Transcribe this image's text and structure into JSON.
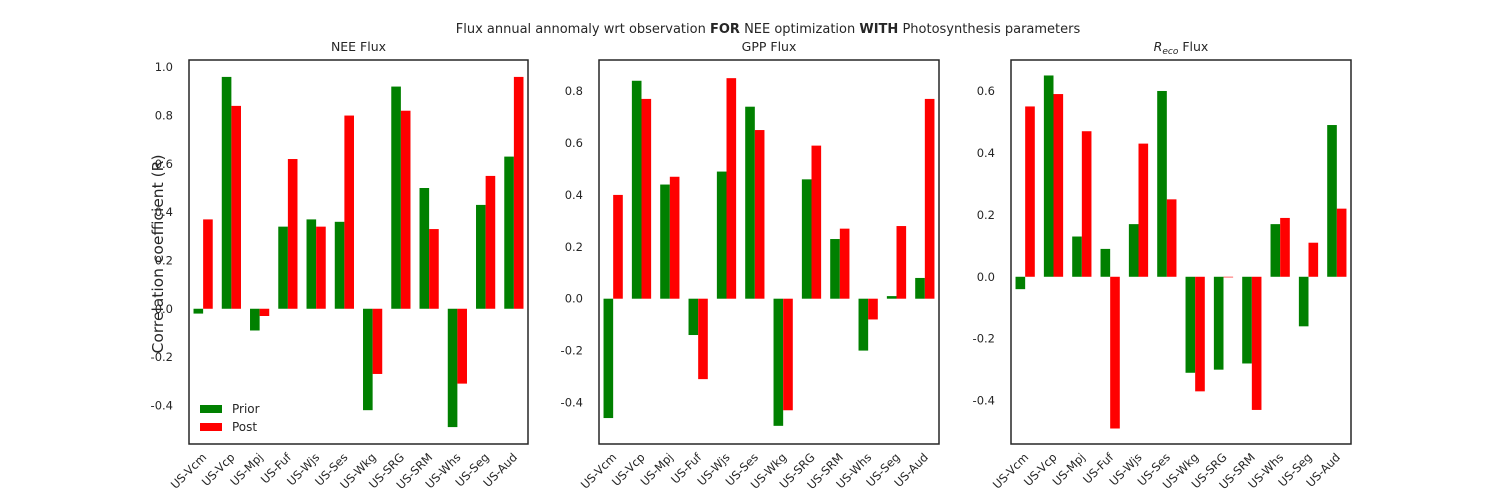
{
  "figure": {
    "suptitle_pre": "Flux annual annomaly wrt observation ",
    "suptitle_b1": "FOR",
    "suptitle_mid": " NEE optimization ",
    "suptitle_b2": "WITH",
    "suptitle_post": " Photosynthesis parameters",
    "ylabel": "Correlation coefficient (R)"
  },
  "colors": {
    "prior": "#008000",
    "post": "#ff0000"
  },
  "legend": {
    "items": [
      "Prior",
      "Post"
    ]
  },
  "chart_data": [
    {
      "type": "bar",
      "title": "NEE Flux",
      "categories": [
        "US-Vcm",
        "US-Vcp",
        "US-Mpj",
        "US-Fuf",
        "US-Wjs",
        "US-Ses",
        "US-Wkg",
        "US-SRG",
        "US-SRM",
        "US-Whs",
        "US-Seg",
        "US-Aud"
      ],
      "series": [
        {
          "name": "Prior",
          "values": [
            -0.02,
            0.96,
            -0.09,
            0.34,
            0.37,
            0.36,
            -0.42,
            0.92,
            0.5,
            -0.49,
            0.43,
            0.63
          ]
        },
        {
          "name": "Post",
          "values": [
            0.37,
            0.84,
            -0.03,
            0.62,
            0.34,
            0.8,
            -0.27,
            0.82,
            0.33,
            -0.31,
            0.55,
            0.96
          ]
        }
      ],
      "ylim": [
        -0.56,
        1.03
      ],
      "yticks": [
        -0.4,
        -0.2,
        0.0,
        0.2,
        0.4,
        0.6,
        0.8,
        1.0
      ],
      "ytick_labels": [
        "-0.4",
        "-0.2",
        "0.0",
        "0.2",
        "0.4",
        "0.6",
        "0.8",
        "1.0"
      ],
      "legend": "lower-left"
    },
    {
      "type": "bar",
      "title": "GPP Flux",
      "categories": [
        "US-Vcm",
        "US-Vcp",
        "US-Mpj",
        "US-Fuf",
        "US-Wjs",
        "US-Ses",
        "US-Wkg",
        "US-SRG",
        "US-SRM",
        "US-Whs",
        "US-Seg",
        "US-Aud"
      ],
      "series": [
        {
          "name": "Prior",
          "values": [
            -0.46,
            0.84,
            0.44,
            -0.14,
            0.49,
            0.74,
            -0.49,
            0.46,
            0.23,
            -0.2,
            0.01,
            0.08
          ]
        },
        {
          "name": "Post",
          "values": [
            0.4,
            0.77,
            0.47,
            -0.31,
            0.85,
            0.65,
            -0.43,
            0.59,
            0.27,
            -0.08,
            0.28,
            0.77
          ]
        }
      ],
      "ylim": [
        -0.56,
        0.92
      ],
      "yticks": [
        -0.4,
        -0.2,
        0.0,
        0.2,
        0.4,
        0.6,
        0.8
      ],
      "ytick_labels": [
        "-0.4",
        "-0.2",
        "0.0",
        "0.2",
        "0.4",
        "0.6",
        "0.8"
      ]
    },
    {
      "type": "bar",
      "title": "Flux",
      "title_math": "R",
      "title_sub": "eco",
      "categories": [
        "US-Vcm",
        "US-Vcp",
        "US-Mpj",
        "US-Fuf",
        "US-Wjs",
        "US-Ses",
        "US-Wkg",
        "US-SRG",
        "US-SRM",
        "US-Whs",
        "US-Seg",
        "US-Aud"
      ],
      "series": [
        {
          "name": "Prior",
          "values": [
            -0.04,
            0.65,
            0.13,
            0.09,
            0.17,
            0.6,
            -0.31,
            -0.3,
            -0.28,
            0.17,
            -0.16,
            0.49
          ]
        },
        {
          "name": "Post",
          "values": [
            0.55,
            0.59,
            0.47,
            -0.49,
            0.43,
            0.25,
            -0.37,
            0.0,
            -0.43,
            0.19,
            0.11,
            0.22
          ]
        }
      ],
      "ylim": [
        -0.54,
        0.7
      ],
      "yticks": [
        -0.4,
        -0.2,
        0.0,
        0.2,
        0.4,
        0.6
      ],
      "ytick_labels": [
        "-0.4",
        "-0.2",
        "0.0",
        "0.2",
        "0.4",
        "0.6"
      ]
    }
  ]
}
